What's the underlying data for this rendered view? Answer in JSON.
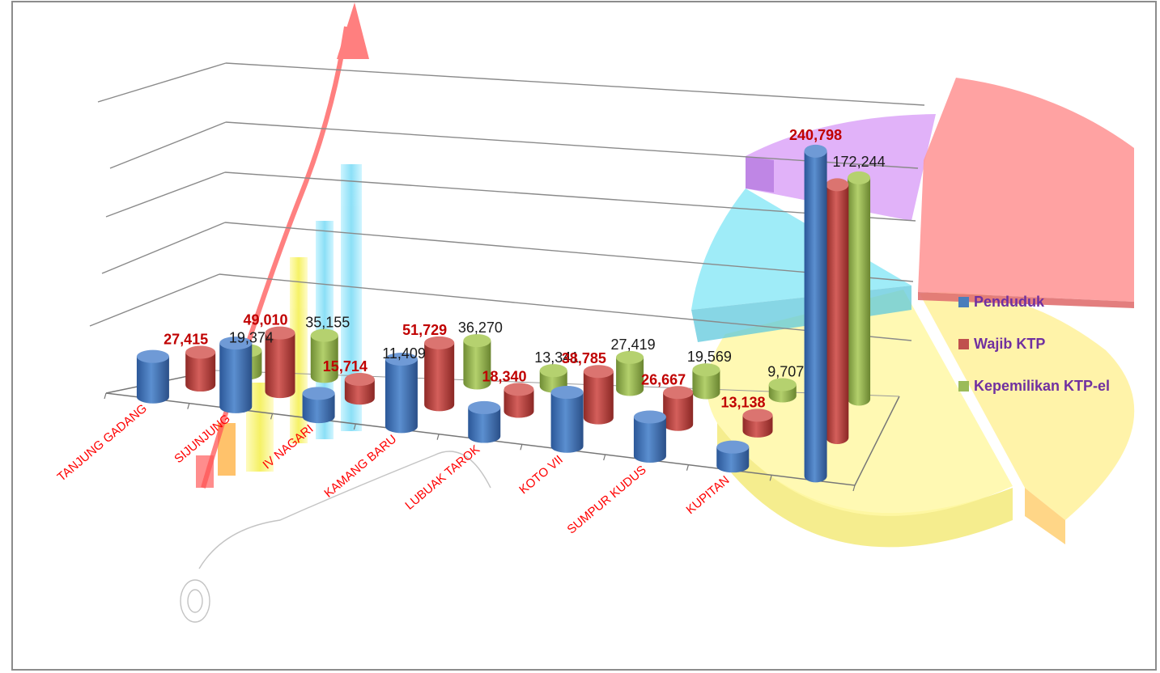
{
  "chart_data": {
    "type": "bar",
    "categories": [
      "TANJUNG GADANG",
      "SIJUNJUNG",
      "IV NAGARI",
      "KAMANG BARU",
      "LUBUAK TAROK",
      "KOTO VII",
      "SUMPUR KUDUS",
      "KUPITAN",
      ""
    ],
    "series": [
      {
        "name": "Penduduk",
        "color": "#4a7ebb",
        "values": [
          33000,
          52000,
          19000,
          55000,
          23500,
          44000,
          32000,
          15500,
          240798
        ],
        "labels": [
          null,
          null,
          null,
          null,
          null,
          null,
          null,
          null,
          "240,798"
        ]
      },
      {
        "name": "Wajib KTP",
        "color": "#c0504d",
        "values": [
          27415,
          49010,
          15714,
          51729,
          18340,
          38785,
          26667,
          13138,
          192000
        ],
        "labels": [
          "27,415",
          "49,010",
          "15,714",
          "51,729",
          "18,340",
          "38,785",
          "26,667",
          "13,138",
          null
        ]
      },
      {
        "name": "Kepemilikan KTP-el",
        "color": "#9bbb59",
        "values": [
          19374,
          35155,
          11409,
          36270,
          13341,
          27419,
          19569,
          9707,
          172244
        ],
        "labels": [
          "19,374",
          "35,155",
          "11,409",
          "36,270",
          "13,341",
          "27,419",
          "19,569",
          "9,707",
          "172,244"
        ]
      }
    ],
    "legend_position": "right",
    "grid": true,
    "chart_style": "3d-cylinder",
    "category_label_color": "#ff0000"
  },
  "decor": {
    "pie_colors": [
      "#ff9c9c",
      "#d9a0f5",
      "#75e6f5",
      "#fff59a",
      "#ffe680"
    ]
  }
}
